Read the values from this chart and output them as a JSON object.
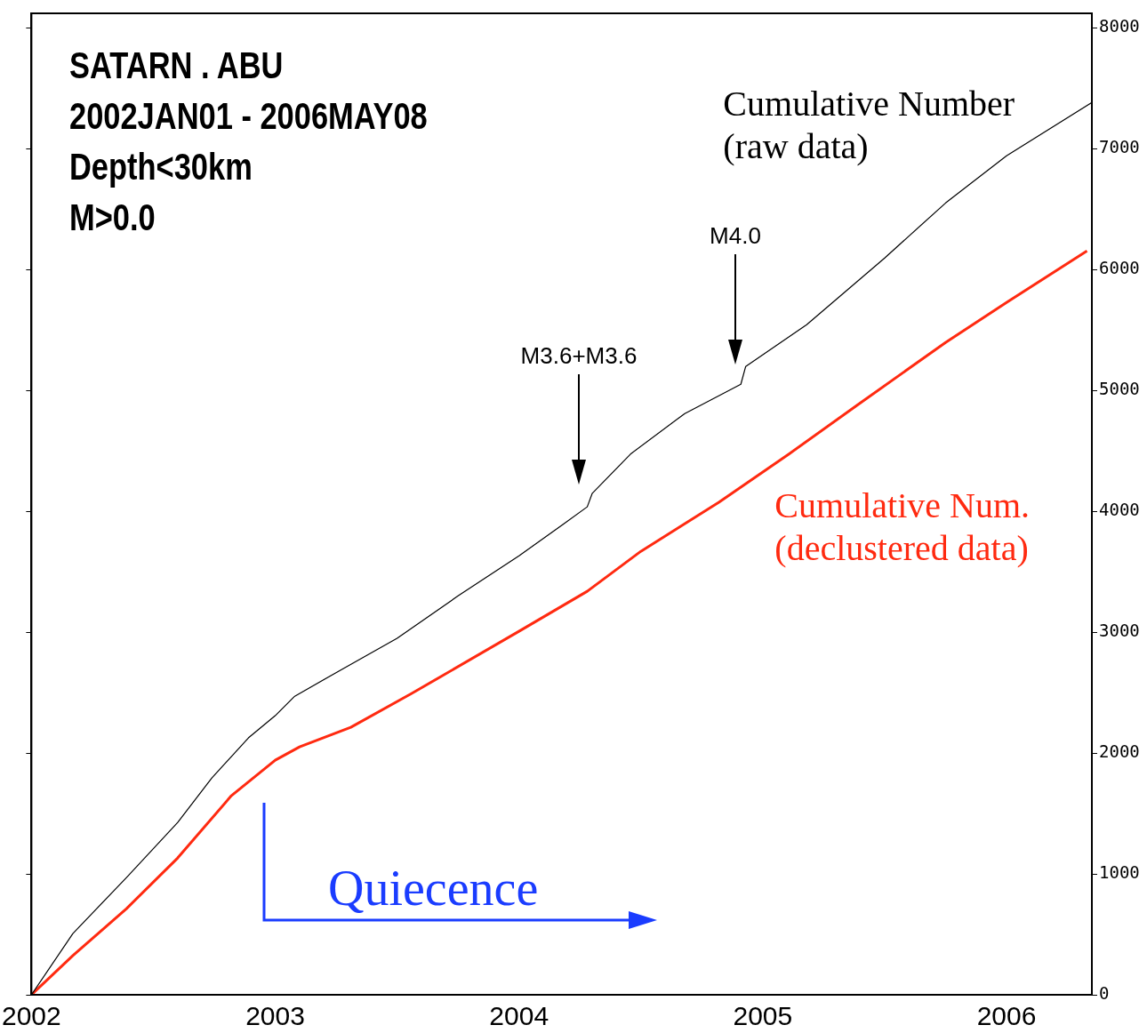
{
  "chart_data": {
    "type": "line",
    "x": [
      2002.0,
      2002.17,
      2002.39,
      2002.6,
      2002.74,
      2002.89,
      2003.0,
      2003.08,
      2003.28,
      2003.5,
      2003.75,
      2004.0,
      2004.18,
      2004.28,
      2004.3,
      2004.46,
      2004.68,
      2004.91,
      2004.93,
      2005.18,
      2005.5,
      2005.75,
      2006.0,
      2006.35
    ],
    "series": [
      {
        "name": "Cumulative Number (raw data)",
        "color": "#000000",
        "values": [
          0,
          507,
          970,
          1426,
          1794,
          2125,
          2309,
          2470,
          2700,
          2950,
          3300,
          3632,
          3890,
          4037,
          4147,
          4478,
          4809,
          5051,
          5199,
          5544,
          6096,
          6551,
          6941,
          7382
        ]
      },
      {
        "name": "Cumulative Num. (declustered data)",
        "color": "#ff2a10",
        "x": [
          2002.0,
          2002.17,
          2002.39,
          2002.6,
          2002.82,
          2003.0,
          2003.1,
          2003.31,
          2003.56,
          2004.0,
          2004.28,
          2004.5,
          2004.82,
          2005.11,
          2005.39,
          2005.75,
          2006.0,
          2006.33
        ],
        "values": [
          0,
          324,
          713,
          1132,
          1647,
          1941,
          2051,
          2213,
          2493,
          3007,
          3338,
          3669,
          4074,
          4478,
          4882,
          5397,
          5728,
          6154
        ]
      }
    ],
    "xlim": [
      2002,
      2006.35
    ],
    "xticks": [
      2002,
      2003,
      2004,
      2005,
      2006
    ],
    "ylim": [
      0,
      8120
    ],
    "yticks": [
      0,
      1000,
      2000,
      3000,
      4000,
      5000,
      6000,
      7000,
      8000
    ],
    "grid": false,
    "legend": false,
    "annotations": [
      "SATARN . ABU",
      "2002JAN01  -  2006MAY08",
      "Depth<30km",
      "M>0.0",
      "M3.6+M3.6",
      "M4.0",
      "Quiecence"
    ]
  }
}
